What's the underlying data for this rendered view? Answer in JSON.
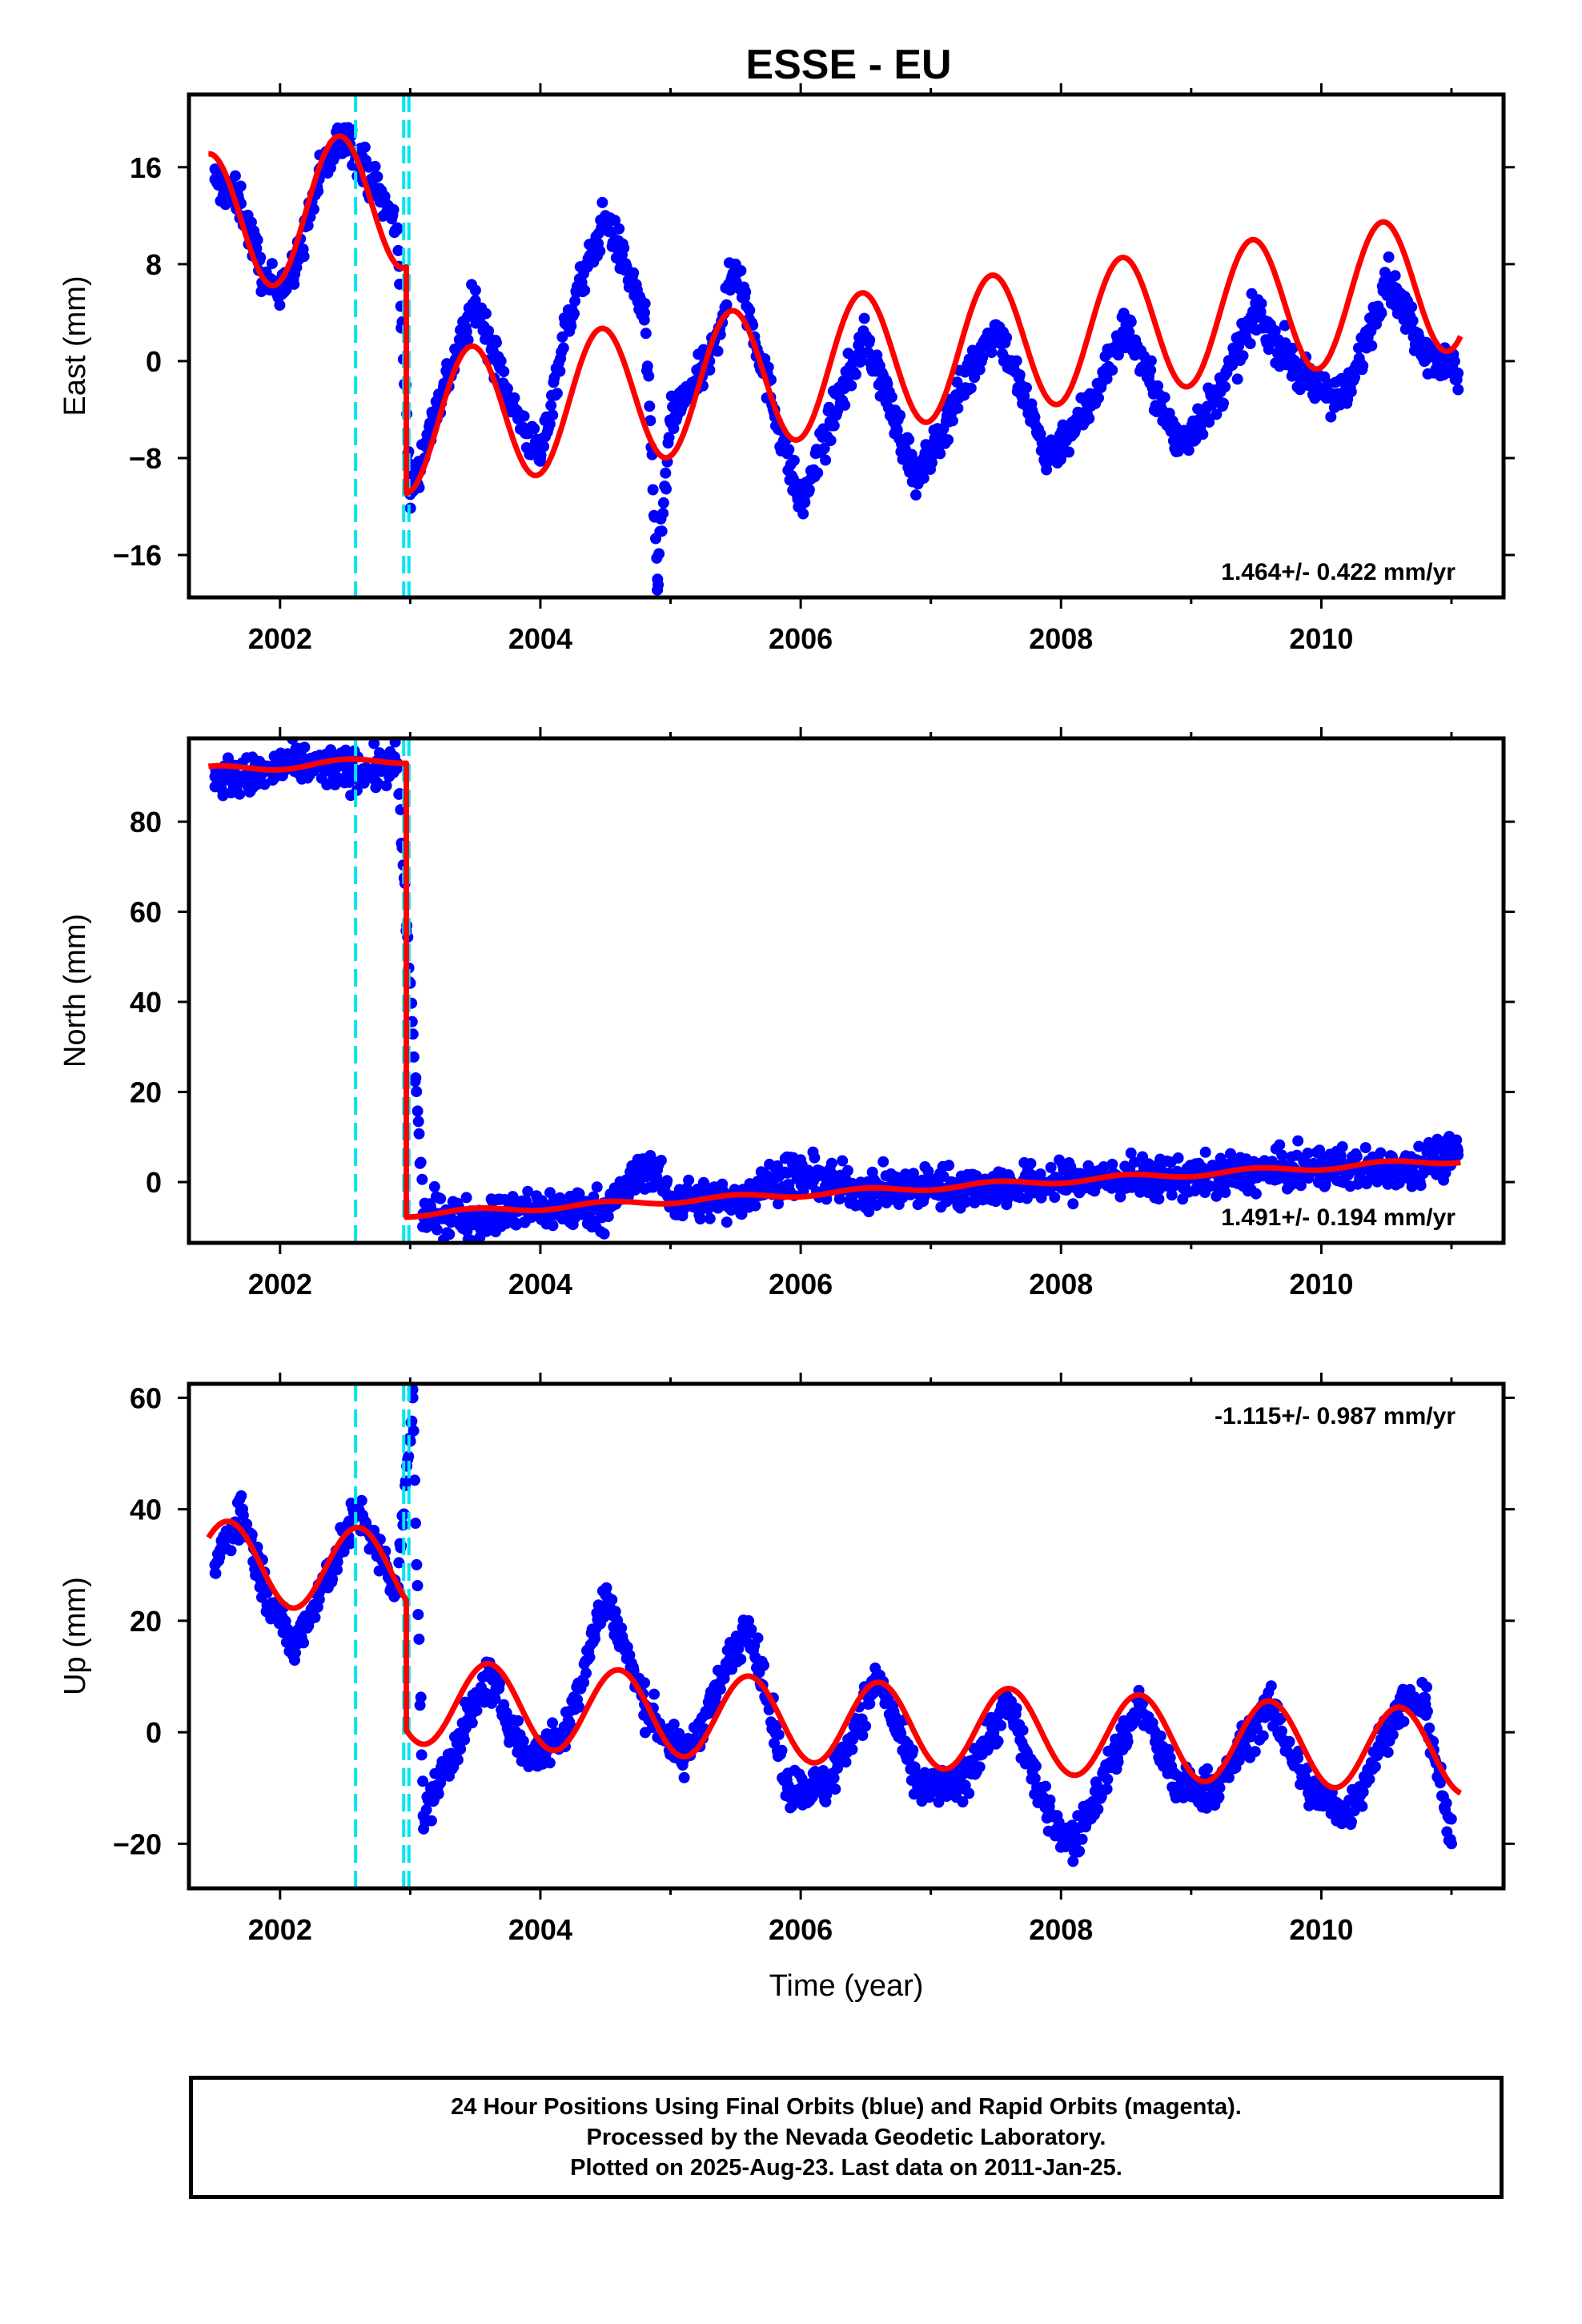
{
  "title": "ESSE - EU",
  "footer": {
    "line1": "24 Hour Positions Using Final Orbits (blue) and Rapid Orbits (magenta).",
    "line2": "Processed by the Nevada Geodetic Laboratory.",
    "line3": "Plotted on 2025-Aug-23. Last data on 2011-Jan-25."
  },
  "colors": {
    "data": "#0000ff",
    "model": "#ff0000",
    "event_lines": "#00e5ee",
    "frame": "#000000"
  },
  "chart_data": [
    {
      "type": "scatter",
      "name": "east",
      "ylabel": "East (mm)",
      "xlabel": "",
      "xlim": [
        2001.3,
        2011.4
      ],
      "ylim": [
        -19.5,
        22
      ],
      "xticks": [
        2002,
        2004,
        2006,
        2008,
        2010
      ],
      "yticks": [
        -16,
        -8,
        0,
        8,
        16
      ],
      "ytick_labels": [
        "−16",
        "−8",
        "0",
        "8",
        "16"
      ],
      "rate_text": "1.464+/- 0.422 mm/yr",
      "rate_position": "bottom-right",
      "event_lines": [
        2002.58,
        2002.95,
        2002.99
      ],
      "model": {
        "before_step": {
          "start": 2001.45,
          "end": 2002.97,
          "offset": 11.3,
          "rate": 1.464,
          "amplitude": 5.8,
          "peak_phase": 0.45
        },
        "after_step": {
          "start": 2002.97,
          "end": 2011.07,
          "offset": -5.2,
          "rate": 1.464,
          "amplitude": 5.7,
          "peak_phase": 0.47
        }
      },
      "observations": [
        {
          "x": 2001.5,
          "y": 15
        },
        {
          "x": 2001.7,
          "y": 13
        },
        {
          "x": 2001.9,
          "y": 6
        },
        {
          "x": 2002.1,
          "y": 7
        },
        {
          "x": 2002.3,
          "y": 15
        },
        {
          "x": 2002.5,
          "y": 19
        },
        {
          "x": 2002.7,
          "y": 15
        },
        {
          "x": 2002.9,
          "y": 11
        },
        {
          "x": 2003.0,
          "y": -11
        },
        {
          "x": 2003.2,
          "y": -4
        },
        {
          "x": 2003.5,
          "y": 5
        },
        {
          "x": 2003.8,
          "y": -4
        },
        {
          "x": 2004.0,
          "y": -8
        },
        {
          "x": 2004.2,
          "y": 3
        },
        {
          "x": 2004.5,
          "y": 12
        },
        {
          "x": 2004.8,
          "y": 4
        },
        {
          "x": 2004.9,
          "y": -18
        },
        {
          "x": 2005.0,
          "y": -5
        },
        {
          "x": 2005.3,
          "y": 0
        },
        {
          "x": 2005.5,
          "y": 8
        },
        {
          "x": 2005.8,
          "y": -4
        },
        {
          "x": 2006.0,
          "y": -12
        },
        {
          "x": 2006.3,
          "y": -3
        },
        {
          "x": 2006.5,
          "y": 2
        },
        {
          "x": 2006.9,
          "y": -10
        },
        {
          "x": 2007.2,
          "y": -3
        },
        {
          "x": 2007.5,
          "y": 3
        },
        {
          "x": 2007.9,
          "y": -8
        },
        {
          "x": 2008.2,
          "y": -4
        },
        {
          "x": 2008.5,
          "y": 3
        },
        {
          "x": 2008.9,
          "y": -7
        },
        {
          "x": 2009.2,
          "y": -3
        },
        {
          "x": 2009.5,
          "y": 4
        },
        {
          "x": 2009.9,
          "y": -2
        },
        {
          "x": 2010.2,
          "y": -3
        },
        {
          "x": 2010.5,
          "y": 7
        },
        {
          "x": 2010.8,
          "y": 1
        },
        {
          "x": 2011.05,
          "y": -1
        }
      ]
    },
    {
      "type": "scatter",
      "name": "north",
      "ylabel": "North (mm)",
      "xlabel": "",
      "xlim": [
        2001.3,
        2011.4
      ],
      "ylim": [
        -13.5,
        98.5
      ],
      "xticks": [
        2002,
        2004,
        2006,
        2008,
        2010
      ],
      "yticks": [
        0,
        20,
        40,
        60,
        80
      ],
      "ytick_labels": [
        "0",
        "20",
        "40",
        "60",
        "80"
      ],
      "rate_text": "1.491+/- 0.194 mm/yr",
      "rate_position": "bottom-right",
      "event_lines": [
        2002.58,
        2002.95,
        2002.99
      ],
      "model": {
        "before_step": {
          "start": 2001.45,
          "end": 2002.97,
          "offset": 91.5,
          "rate": 1.491,
          "amplitude": 0.8,
          "peak_phase": 0.5
        },
        "after_step": {
          "start": 2002.97,
          "end": 2011.07,
          "offset": -7.2,
          "rate": 1.491,
          "amplitude": 0.6,
          "peak_phase": 0.5
        }
      },
      "observations": [
        {
          "x": 2001.5,
          "y": 90
        },
        {
          "x": 2001.8,
          "y": 90
        },
        {
          "x": 2002.1,
          "y": 93
        },
        {
          "x": 2002.4,
          "y": 92
        },
        {
          "x": 2002.7,
          "y": 91
        },
        {
          "x": 2002.9,
          "y": 93
        },
        {
          "x": 2003.1,
          "y": -7
        },
        {
          "x": 2003.5,
          "y": -8
        },
        {
          "x": 2004.0,
          "y": -6
        },
        {
          "x": 2004.5,
          "y": -6
        },
        {
          "x": 2004.85,
          "y": 4
        },
        {
          "x": 2005.0,
          "y": -4
        },
        {
          "x": 2005.5,
          "y": -4
        },
        {
          "x": 2005.9,
          "y": 2
        },
        {
          "x": 2006.5,
          "y": -2
        },
        {
          "x": 2007.0,
          "y": -1
        },
        {
          "x": 2007.5,
          "y": -1
        },
        {
          "x": 2008.0,
          "y": 0
        },
        {
          "x": 2008.5,
          "y": 1
        },
        {
          "x": 2009.0,
          "y": 1
        },
        {
          "x": 2009.5,
          "y": 2
        },
        {
          "x": 2010.0,
          "y": 3
        },
        {
          "x": 2010.5,
          "y": 3
        },
        {
          "x": 2011.05,
          "y": 6
        }
      ]
    },
    {
      "type": "scatter",
      "name": "up",
      "ylabel": "Up (mm)",
      "xlabel": "Time (year)",
      "xlim": [
        2001.3,
        2011.4
      ],
      "ylim": [
        -28,
        62.5
      ],
      "xticks": [
        2002,
        2004,
        2006,
        2008,
        2010
      ],
      "yticks": [
        -20,
        0,
        20,
        40,
        60
      ],
      "ytick_labels": [
        "−20",
        "0",
        "20",
        "40",
        "60"
      ],
      "rate_text": "-1.115+/- 0.987 mm/yr",
      "rate_position": "top-right",
      "event_lines": [
        2002.58,
        2002.95,
        2002.99
      ],
      "model": {
        "before_step": {
          "start": 2001.45,
          "end": 2002.97,
          "offset": 30.5,
          "rate": -1.115,
          "amplitude": 7.5,
          "peak_phase": 0.6
        },
        "after_step": {
          "start": 2002.97,
          "end": 2011.07,
          "offset": 5.5,
          "rate": -1.115,
          "amplitude": 7.5,
          "peak_phase": 0.6
        }
      },
      "observations": [
        {
          "x": 2001.5,
          "y": 30
        },
        {
          "x": 2001.7,
          "y": 40
        },
        {
          "x": 2001.9,
          "y": 25
        },
        {
          "x": 2002.1,
          "y": 15
        },
        {
          "x": 2002.3,
          "y": 25
        },
        {
          "x": 2002.6,
          "y": 40
        },
        {
          "x": 2002.9,
          "y": 25
        },
        {
          "x": 2003.02,
          "y": 60
        },
        {
          "x": 2003.1,
          "y": -15
        },
        {
          "x": 2003.3,
          "y": -5
        },
        {
          "x": 2003.6,
          "y": 10
        },
        {
          "x": 2003.9,
          "y": -5
        },
        {
          "x": 2004.2,
          "y": 0
        },
        {
          "x": 2004.5,
          "y": 25
        },
        {
          "x": 2004.8,
          "y": 5
        },
        {
          "x": 2005.1,
          "y": -5
        },
        {
          "x": 2005.3,
          "y": 5
        },
        {
          "x": 2005.6,
          "y": 20
        },
        {
          "x": 2005.9,
          "y": -10
        },
        {
          "x": 2006.2,
          "y": -10
        },
        {
          "x": 2006.6,
          "y": 10
        },
        {
          "x": 2006.9,
          "y": -10
        },
        {
          "x": 2007.2,
          "y": -10
        },
        {
          "x": 2007.6,
          "y": 5
        },
        {
          "x": 2007.9,
          "y": -15
        },
        {
          "x": 2008.1,
          "y": -20
        },
        {
          "x": 2008.6,
          "y": 5
        },
        {
          "x": 2008.9,
          "y": -10
        },
        {
          "x": 2009.2,
          "y": -10
        },
        {
          "x": 2009.6,
          "y": 5
        },
        {
          "x": 2009.9,
          "y": -10
        },
        {
          "x": 2010.2,
          "y": -15
        },
        {
          "x": 2010.6,
          "y": 5
        },
        {
          "x": 2010.8,
          "y": 5
        },
        {
          "x": 2011.0,
          "y": -20
        }
      ]
    }
  ]
}
